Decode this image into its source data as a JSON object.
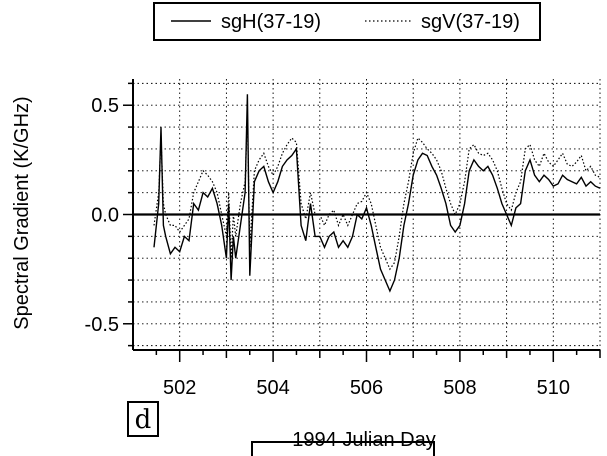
{
  "chart_data": {
    "type": "line",
    "title": "",
    "xlabel": "1994 Julian Day",
    "ylabel": "Spectral Gradient  (K/GHz)",
    "xlim": [
      501.0,
      511.0
    ],
    "ylim": [
      -0.62,
      0.62
    ],
    "x_ticks": [
      502,
      504,
      506,
      508,
      510
    ],
    "x_tick_labels": [
      "502",
      "504",
      "506",
      "508",
      "510"
    ],
    "y_ticks": [
      0.5,
      0.0,
      -0.5
    ],
    "y_tick_labels": [
      "0.5",
      "0.0",
      "-0.5"
    ],
    "grid": true,
    "legend_position": "top",
    "panel_label": "d",
    "series": [
      {
        "name": "sgH(37-19)",
        "style": "solid",
        "x": [
          501.45,
          501.55,
          501.6,
          501.65,
          501.7,
          501.8,
          501.9,
          502.0,
          502.1,
          502.2,
          502.3,
          502.4,
          502.5,
          502.6,
          502.7,
          502.8,
          502.9,
          503.0,
          503.05,
          503.1,
          503.15,
          503.2,
          503.3,
          503.4,
          503.45,
          503.5,
          503.6,
          503.7,
          503.8,
          503.9,
          504.0,
          504.1,
          504.2,
          504.3,
          504.4,
          504.5,
          504.6,
          504.7,
          504.8,
          504.9,
          505.0,
          505.1,
          505.2,
          505.3,
          505.4,
          505.5,
          505.6,
          505.7,
          505.8,
          505.9,
          506.0,
          506.1,
          506.2,
          506.3,
          506.4,
          506.5,
          506.6,
          506.7,
          506.8,
          506.9,
          507.0,
          507.1,
          507.2,
          507.3,
          507.4,
          507.5,
          507.6,
          507.7,
          507.8,
          507.9,
          508.0,
          508.1,
          508.2,
          508.3,
          508.4,
          508.5,
          508.6,
          508.7,
          508.8,
          508.9,
          509.0,
          509.1,
          509.2,
          509.3,
          509.4,
          509.5,
          509.6,
          509.7,
          509.8,
          509.9,
          510.0,
          510.1,
          510.2,
          510.3,
          510.4,
          510.5,
          510.6,
          510.7,
          510.8,
          510.9,
          511.0
        ],
        "values": [
          -0.15,
          0.05,
          0.4,
          -0.05,
          -0.1,
          -0.18,
          -0.15,
          -0.17,
          -0.1,
          -0.12,
          0.05,
          0.02,
          0.1,
          0.08,
          0.12,
          0.05,
          -0.05,
          -0.2,
          0.05,
          -0.3,
          -0.1,
          -0.2,
          -0.05,
          0.1,
          0.55,
          -0.28,
          0.15,
          0.2,
          0.22,
          0.15,
          0.1,
          0.15,
          0.22,
          0.25,
          0.27,
          0.3,
          -0.05,
          -0.12,
          0.05,
          -0.1,
          -0.1,
          -0.15,
          -0.1,
          -0.08,
          -0.15,
          -0.12,
          -0.15,
          -0.1,
          0.0,
          -0.02,
          0.03,
          -0.05,
          -0.15,
          -0.25,
          -0.3,
          -0.35,
          -0.3,
          -0.2,
          -0.05,
          0.05,
          0.18,
          0.25,
          0.28,
          0.27,
          0.22,
          0.18,
          0.12,
          0.05,
          -0.05,
          -0.08,
          -0.05,
          0.05,
          0.2,
          0.25,
          0.22,
          0.2,
          0.22,
          0.18,
          0.12,
          0.05,
          0.0,
          -0.05,
          0.03,
          0.05,
          0.2,
          0.25,
          0.18,
          0.15,
          0.18,
          0.16,
          0.13,
          0.14,
          0.18,
          0.16,
          0.15,
          0.14,
          0.17,
          0.13,
          0.15,
          0.13,
          0.12
        ]
      },
      {
        "name": "sgV(37-19)",
        "style": "dotted",
        "x": [
          501.45,
          501.55,
          501.6,
          501.65,
          501.7,
          501.8,
          501.9,
          502.0,
          502.1,
          502.2,
          502.3,
          502.4,
          502.5,
          502.6,
          502.7,
          502.8,
          502.9,
          503.0,
          503.05,
          503.1,
          503.15,
          503.2,
          503.3,
          503.4,
          503.45,
          503.5,
          503.6,
          503.7,
          503.8,
          503.9,
          504.0,
          504.1,
          504.2,
          504.3,
          504.4,
          504.5,
          504.6,
          504.7,
          504.8,
          504.9,
          505.0,
          505.1,
          505.2,
          505.3,
          505.4,
          505.5,
          505.6,
          505.7,
          505.8,
          505.9,
          506.0,
          506.1,
          506.2,
          506.3,
          506.4,
          506.5,
          506.6,
          506.7,
          506.8,
          506.9,
          507.0,
          507.1,
          507.2,
          507.3,
          507.4,
          507.5,
          507.6,
          507.7,
          507.8,
          507.9,
          508.0,
          508.1,
          508.2,
          508.3,
          508.4,
          508.5,
          508.6,
          508.7,
          508.8,
          508.9,
          509.0,
          509.1,
          509.2,
          509.3,
          509.4,
          509.5,
          509.6,
          509.7,
          509.8,
          509.9,
          510.0,
          510.1,
          510.2,
          510.3,
          510.4,
          510.5,
          510.6,
          510.7,
          510.8,
          510.9,
          511.0
        ],
        "values": [
          -0.05,
          0.1,
          0.35,
          0.05,
          0.0,
          -0.05,
          -0.05,
          -0.08,
          -0.05,
          -0.02,
          0.1,
          0.15,
          0.2,
          0.18,
          0.15,
          0.1,
          0.0,
          -0.1,
          0.1,
          -0.2,
          0.0,
          -0.1,
          0.05,
          0.15,
          0.45,
          -0.15,
          0.2,
          0.25,
          0.28,
          0.22,
          0.18,
          0.22,
          0.28,
          0.32,
          0.35,
          0.33,
          0.05,
          -0.02,
          0.1,
          0.0,
          0.0,
          -0.05,
          0.0,
          0.02,
          -0.05,
          0.0,
          -0.05,
          0.0,
          0.05,
          0.06,
          0.1,
          0.05,
          -0.05,
          -0.15,
          -0.2,
          -0.25,
          -0.22,
          -0.1,
          0.05,
          0.15,
          0.28,
          0.35,
          0.33,
          0.3,
          0.28,
          0.25,
          0.2,
          0.12,
          0.05,
          0.0,
          0.05,
          0.15,
          0.3,
          0.32,
          0.28,
          0.27,
          0.28,
          0.25,
          0.2,
          0.12,
          0.05,
          0.02,
          0.1,
          0.15,
          0.3,
          0.32,
          0.25,
          0.22,
          0.28,
          0.24,
          0.22,
          0.25,
          0.28,
          0.23,
          0.22,
          0.24,
          0.27,
          0.2,
          0.22,
          0.18,
          0.17
        ]
      }
    ]
  }
}
